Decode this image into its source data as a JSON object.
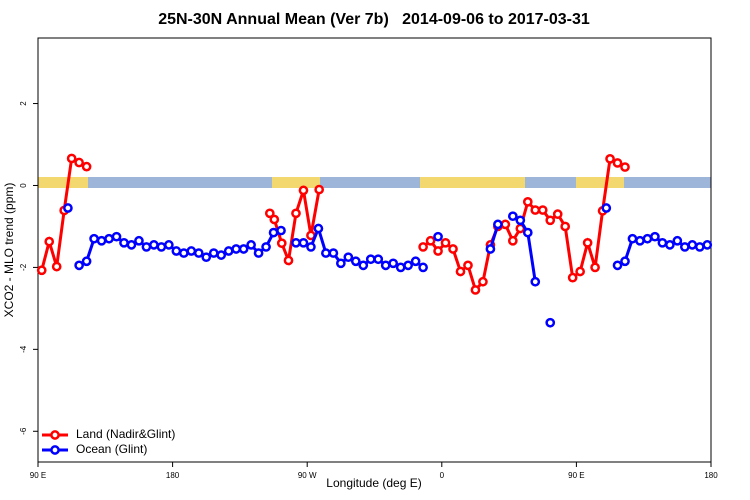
{
  "chart_data": {
    "type": "line",
    "title": "25N-30N Annual Mean (Ver 7b)   2014-09-06 to 2017-03-31",
    "x_label": "Longitude (deg E)",
    "y_label": "XCO2 - MLO trend (ppm)",
    "xlim": [
      90,
      540
    ],
    "ylim": [
      -6.75,
      3.6
    ],
    "xticks": [
      {
        "value": 90,
        "label": "90 E"
      },
      180,
      {
        "value": 270,
        "label": "90 W"
      },
      {
        "value": 360,
        "label": "0"
      },
      {
        "value": 450,
        "label": "90 E"
      },
      {
        "value": 540,
        "label": "180"
      }
    ],
    "yticks": [
      2,
      0,
      -2,
      -4,
      -6
    ],
    "legend": "bottomleft",
    "series": [
      {
        "name": "Land (Nadir&Glint)",
        "color": "#ff0000",
        "x": [
          92.5,
          97.5,
          102.5,
          107.5,
          112.5,
          117.5,
          122.5,
          127.5,
          245,
          248,
          253,
          257.5,
          262.5,
          267.5,
          272.5,
          278,
          282.5,
          347.5,
          352.5,
          357.5,
          362.5,
          367.5,
          372.5,
          377.5,
          382.5,
          387.5,
          392.5,
          397.5,
          402.5,
          407.5,
          412.5,
          417.5,
          422.5,
          427.5,
          432.5,
          437.5,
          442.5,
          447.5,
          452.5,
          457.5,
          462.5,
          467.5,
          472.5,
          477.5,
          482.5
        ],
        "values": [
          -2.07,
          -1.37,
          -1.98,
          -0.61,
          0.66,
          0.56,
          0.46,
          null,
          -0.68,
          -0.83,
          -1.41,
          -1.83,
          -0.68,
          -0.12,
          -1.22,
          -0.1,
          null,
          -1.5,
          -1.35,
          -1.6,
          -1.4,
          -1.55,
          -2.1,
          -1.95,
          -2.55,
          -2.35,
          -1.45,
          -1.0,
          -0.95,
          -1.35,
          -1.05,
          -0.4,
          -0.6,
          -0.6,
          -0.85,
          -0.7,
          -1.0,
          -2.25,
          -2.1,
          -1.4,
          -2.0,
          -0.62,
          0.65,
          0.55,
          0.45
        ]
      },
      {
        "name": "Ocean (Glint)",
        "color": "#0000ff",
        "x": [
          110,
          115,
          117.5,
          122.5,
          127.5,
          132.5,
          137.5,
          142.5,
          147.5,
          152.5,
          157.5,
          162.5,
          167.5,
          172.5,
          177.5,
          182.5,
          187.5,
          192.5,
          197.5,
          202.5,
          207.5,
          212.5,
          217.5,
          222.5,
          227.5,
          232.5,
          237.5,
          242.5,
          247.5,
          252.5,
          257.5,
          262.5,
          267.5,
          272.5,
          277.5,
          282.5,
          287.5,
          292.5,
          297.5,
          302.5,
          307.5,
          312.5,
          317.5,
          322.5,
          327.5,
          332.5,
          337.5,
          342.5,
          347.5,
          352.5,
          357.5,
          362.5,
          392.5,
          397.5,
          402.5,
          407.5,
          412.5,
          417.5,
          422.5,
          427.5,
          432.5,
          437.5,
          470,
          472.5,
          477.5,
          482.5,
          487.5,
          492.5,
          497.5,
          502.5,
          507.5,
          512.5,
          517.5,
          522.5,
          527.5,
          532.5,
          537.5
        ],
        "values": [
          -0.55,
          null,
          -1.95,
          -1.85,
          -1.3,
          -1.35,
          -1.3,
          -1.25,
          -1.4,
          -1.45,
          -1.35,
          -1.5,
          -1.45,
          -1.5,
          -1.45,
          -1.6,
          -1.65,
          -1.6,
          -1.65,
          -1.75,
          -1.65,
          -1.7,
          -1.6,
          -1.55,
          -1.55,
          -1.45,
          -1.65,
          -1.5,
          -1.15,
          -1.1,
          null,
          -1.4,
          -1.4,
          -1.5,
          -1.05,
          -1.65,
          -1.65,
          -1.9,
          -1.75,
          -1.85,
          -1.95,
          -1.8,
          -1.8,
          -1.95,
          -1.9,
          -2.0,
          -1.95,
          -1.85,
          -2.0,
          null,
          -1.25,
          null,
          -1.55,
          -0.95,
          null,
          -0.75,
          -0.85,
          -1.15,
          -2.35,
          null,
          -3.35,
          null,
          -0.55,
          null,
          -1.95,
          -1.85,
          -1.3,
          -1.35,
          -1.3,
          -1.25,
          -1.4,
          -1.45,
          -1.35,
          -1.5,
          -1.45,
          -1.5,
          -1.45
        ]
      }
    ]
  }
}
